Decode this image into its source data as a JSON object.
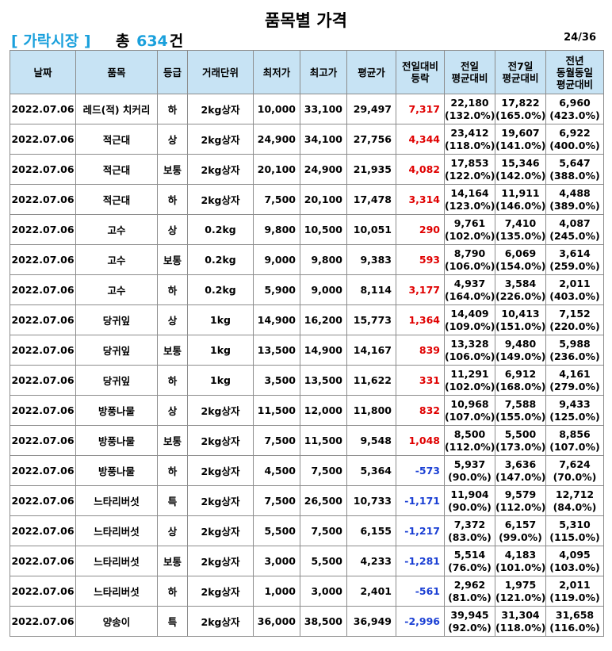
{
  "title": "품목별 가격",
  "market": "[ 가락시장 ]",
  "total_prefix": "총",
  "total_count": "634",
  "total_suffix": "건",
  "page_indicator": "24/36",
  "headers": {
    "date": "날짜",
    "item": "품목",
    "grade": "등급",
    "unit": "거래단위",
    "min": "최저가",
    "max": "최고가",
    "avg": "평균가",
    "dod": "전일대비\n등락",
    "prev_day": "전일\n평균대비",
    "prev_week": "전7일\n평균대비",
    "prev_year": "전년\n동월동일\n평균대비"
  },
  "colors": {
    "header_bg": "#c7e3f4",
    "positive": "#e00000",
    "negative": "#1a3fd4",
    "market": "#1aa0dc"
  },
  "rows": [
    {
      "date": "2022.07.06",
      "item": "레드(적) 치커리",
      "grade": "하",
      "unit": "2kg상자",
      "min": "10,000",
      "max": "33,100",
      "avg": "29,497",
      "change": "7,317",
      "prev_day": "22,180",
      "prev_day_pct": "(132.0%)",
      "prev_week": "17,822",
      "prev_week_pct": "(165.0%)",
      "prev_year": "6,960",
      "prev_year_pct": "(423.0%)"
    },
    {
      "date": "2022.07.06",
      "item": "적근대",
      "grade": "상",
      "unit": "2kg상자",
      "min": "24,900",
      "max": "34,100",
      "avg": "27,756",
      "change": "4,344",
      "prev_day": "23,412",
      "prev_day_pct": "(118.0%)",
      "prev_week": "19,607",
      "prev_week_pct": "(141.0%)",
      "prev_year": "6,922",
      "prev_year_pct": "(400.0%)"
    },
    {
      "date": "2022.07.06",
      "item": "적근대",
      "grade": "보통",
      "unit": "2kg상자",
      "min": "20,100",
      "max": "24,900",
      "avg": "21,935",
      "change": "4,082",
      "prev_day": "17,853",
      "prev_day_pct": "(122.0%)",
      "prev_week": "15,346",
      "prev_week_pct": "(142.0%)",
      "prev_year": "5,647",
      "prev_year_pct": "(388.0%)"
    },
    {
      "date": "2022.07.06",
      "item": "적근대",
      "grade": "하",
      "unit": "2kg상자",
      "min": "7,500",
      "max": "20,100",
      "avg": "17,478",
      "change": "3,314",
      "prev_day": "14,164",
      "prev_day_pct": "(123.0%)",
      "prev_week": "11,911",
      "prev_week_pct": "(146.0%)",
      "prev_year": "4,488",
      "prev_year_pct": "(389.0%)"
    },
    {
      "date": "2022.07.06",
      "item": "고수",
      "grade": "상",
      "unit": "0.2kg",
      "min": "9,800",
      "max": "10,500",
      "avg": "10,051",
      "change": "290",
      "prev_day": "9,761",
      "prev_day_pct": "(102.0%)",
      "prev_week": "7,410",
      "prev_week_pct": "(135.0%)",
      "prev_year": "4,087",
      "prev_year_pct": "(245.0%)"
    },
    {
      "date": "2022.07.06",
      "item": "고수",
      "grade": "보통",
      "unit": "0.2kg",
      "min": "9,000",
      "max": "9,800",
      "avg": "9,383",
      "change": "593",
      "prev_day": "8,790",
      "prev_day_pct": "(106.0%)",
      "prev_week": "6,069",
      "prev_week_pct": "(154.0%)",
      "prev_year": "3,614",
      "prev_year_pct": "(259.0%)"
    },
    {
      "date": "2022.07.06",
      "item": "고수",
      "grade": "하",
      "unit": "0.2kg",
      "min": "5,900",
      "max": "9,000",
      "avg": "8,114",
      "change": "3,177",
      "prev_day": "4,937",
      "prev_day_pct": "(164.0%)",
      "prev_week": "3,584",
      "prev_week_pct": "(226.0%)",
      "prev_year": "2,011",
      "prev_year_pct": "(403.0%)"
    },
    {
      "date": "2022.07.06",
      "item": "당귀잎",
      "grade": "상",
      "unit": "1kg",
      "min": "14,900",
      "max": "16,200",
      "avg": "15,773",
      "change": "1,364",
      "prev_day": "14,409",
      "prev_day_pct": "(109.0%)",
      "prev_week": "10,413",
      "prev_week_pct": "(151.0%)",
      "prev_year": "7,152",
      "prev_year_pct": "(220.0%)"
    },
    {
      "date": "2022.07.06",
      "item": "당귀잎",
      "grade": "보통",
      "unit": "1kg",
      "min": "13,500",
      "max": "14,900",
      "avg": "14,167",
      "change": "839",
      "prev_day": "13,328",
      "prev_day_pct": "(106.0%)",
      "prev_week": "9,480",
      "prev_week_pct": "(149.0%)",
      "prev_year": "5,988",
      "prev_year_pct": "(236.0%)"
    },
    {
      "date": "2022.07.06",
      "item": "당귀잎",
      "grade": "하",
      "unit": "1kg",
      "min": "3,500",
      "max": "13,500",
      "avg": "11,622",
      "change": "331",
      "prev_day": "11,291",
      "prev_day_pct": "(102.0%)",
      "prev_week": "6,912",
      "prev_week_pct": "(168.0%)",
      "prev_year": "4,161",
      "prev_year_pct": "(279.0%)"
    },
    {
      "date": "2022.07.06",
      "item": "방풍나물",
      "grade": "상",
      "unit": "2kg상자",
      "min": "11,500",
      "max": "12,000",
      "avg": "11,800",
      "change": "832",
      "prev_day": "10,968",
      "prev_day_pct": "(107.0%)",
      "prev_week": "7,588",
      "prev_week_pct": "(155.0%)",
      "prev_year": "9,433",
      "prev_year_pct": "(125.0%)"
    },
    {
      "date": "2022.07.06",
      "item": "방풍나물",
      "grade": "보통",
      "unit": "2kg상자",
      "min": "7,500",
      "max": "11,500",
      "avg": "9,548",
      "change": "1,048",
      "prev_day": "8,500",
      "prev_day_pct": "(112.0%)",
      "prev_week": "5,500",
      "prev_week_pct": "(173.0%)",
      "prev_year": "8,856",
      "prev_year_pct": "(107.0%)"
    },
    {
      "date": "2022.07.06",
      "item": "방풍나물",
      "grade": "하",
      "unit": "2kg상자",
      "min": "4,500",
      "max": "7,500",
      "avg": "5,364",
      "change": "-573",
      "prev_day": "5,937",
      "prev_day_pct": "(90.0%)",
      "prev_week": "3,636",
      "prev_week_pct": "(147.0%)",
      "prev_year": "7,624",
      "prev_year_pct": "(70.0%)"
    },
    {
      "date": "2022.07.06",
      "item": "느타리버섯",
      "grade": "특",
      "unit": "2kg상자",
      "min": "7,500",
      "max": "26,500",
      "avg": "10,733",
      "change": "-1,171",
      "prev_day": "11,904",
      "prev_day_pct": "(90.0%)",
      "prev_week": "9,579",
      "prev_week_pct": "(112.0%)",
      "prev_year": "12,712",
      "prev_year_pct": "(84.0%)"
    },
    {
      "date": "2022.07.06",
      "item": "느타리버섯",
      "grade": "상",
      "unit": "2kg상자",
      "min": "5,500",
      "max": "7,500",
      "avg": "6,155",
      "change": "-1,217",
      "prev_day": "7,372",
      "prev_day_pct": "(83.0%)",
      "prev_week": "6,157",
      "prev_week_pct": "(99.0%)",
      "prev_year": "5,310",
      "prev_year_pct": "(115.0%)"
    },
    {
      "date": "2022.07.06",
      "item": "느타리버섯",
      "grade": "보통",
      "unit": "2kg상자",
      "min": "3,000",
      "max": "5,500",
      "avg": "4,233",
      "change": "-1,281",
      "prev_day": "5,514",
      "prev_day_pct": "(76.0%)",
      "prev_week": "4,183",
      "prev_week_pct": "(101.0%)",
      "prev_year": "4,095",
      "prev_year_pct": "(103.0%)"
    },
    {
      "date": "2022.07.06",
      "item": "느타리버섯",
      "grade": "하",
      "unit": "2kg상자",
      "min": "1,000",
      "max": "3,000",
      "avg": "2,401",
      "change": "-561",
      "prev_day": "2,962",
      "prev_day_pct": "(81.0%)",
      "prev_week": "1,975",
      "prev_week_pct": "(121.0%)",
      "prev_year": "2,011",
      "prev_year_pct": "(119.0%)"
    },
    {
      "date": "2022.07.06",
      "item": "양송이",
      "grade": "특",
      "unit": "2kg상자",
      "min": "36,000",
      "max": "38,500",
      "avg": "36,949",
      "change": "-2,996",
      "prev_day": "39,945",
      "prev_day_pct": "(92.0%)",
      "prev_week": "31,304",
      "prev_week_pct": "(118.0%)",
      "prev_year": "31,658",
      "prev_year_pct": "(116.0%)"
    }
  ]
}
